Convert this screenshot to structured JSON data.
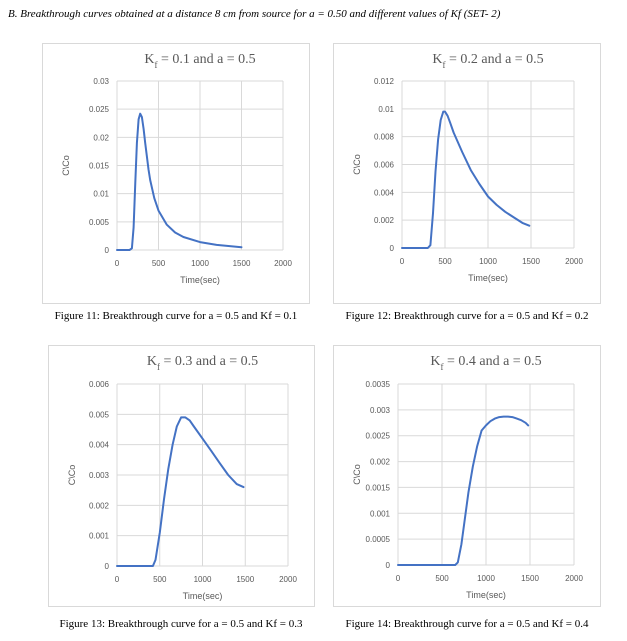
{
  "heading": "B.   Breakthrough curves obtained at a distance 8 cm from source for a = 0.50 and different values of Kf (SET- 2)",
  "chart_data": [
    {
      "type": "line",
      "title": "Kf = 0.1 and a = 0.5",
      "xlabel": "Time(sec)",
      "ylabel": "C\\Co",
      "xlim": [
        0,
        2000
      ],
      "ylim": [
        0,
        0.03
      ],
      "xticks": [
        "0",
        "500",
        "1000",
        "1500",
        "2000"
      ],
      "yticks": [
        "0",
        "0.005",
        "0.01",
        "0.015",
        "0.02",
        "0.025",
        "0.03"
      ],
      "grid": true,
      "series": [
        {
          "color": "#4472c4",
          "x": [
            0,
            150,
            180,
            200,
            220,
            240,
            260,
            280,
            300,
            320,
            340,
            360,
            380,
            400,
            450,
            500,
            600,
            700,
            800,
            1000,
            1200,
            1500
          ],
          "y": [
            0,
            0,
            0.0003,
            0.004,
            0.012,
            0.019,
            0.0232,
            0.0242,
            0.0236,
            0.0215,
            0.019,
            0.0166,
            0.0143,
            0.0124,
            0.0092,
            0.007,
            0.0045,
            0.0031,
            0.0023,
            0.0014,
            0.0009,
            0.0005
          ]
        }
      ],
      "caption": "Figure 11:   Breakthrough curve for a = 0.5 and Kf = 0.1"
    },
    {
      "type": "line",
      "title": "Kf = 0.2 and a = 0.5",
      "xlabel": "Time(sec)",
      "ylabel": "C\\Co",
      "xlim": [
        0,
        2000
      ],
      "ylim": [
        0,
        0.012
      ],
      "xticks": [
        "0",
        "500",
        "1000",
        "1500",
        "2000"
      ],
      "yticks": [
        "0",
        "0.002",
        "0.004",
        "0.006",
        "0.008",
        "0.01",
        "0.012"
      ],
      "grid": true,
      "series": [
        {
          "color": "#4472c4",
          "x": [
            0,
            300,
            330,
            360,
            390,
            420,
            450,
            480,
            500,
            530,
            560,
            600,
            700,
            800,
            900,
            1000,
            1100,
            1200,
            1300,
            1400,
            1480
          ],
          "y": [
            0,
            0,
            0.0002,
            0.0025,
            0.0055,
            0.0078,
            0.0092,
            0.0098,
            0.0098,
            0.0095,
            0.009,
            0.0083,
            0.0069,
            0.0056,
            0.0046,
            0.0037,
            0.0031,
            0.0026,
            0.0022,
            0.0018,
            0.0016
          ]
        }
      ],
      "caption": "Figure 12:   Breakthrough curve for a = 0.5 and Kf = 0.2"
    },
    {
      "type": "line",
      "title": "Kf = 0.3 and a = 0.5",
      "xlabel": "Time(sec)",
      "ylabel": "C\\Co",
      "xlim": [
        0,
        2000
      ],
      "ylim": [
        0,
        0.006
      ],
      "xticks": [
        "0",
        "500",
        "1000",
        "1500",
        "2000"
      ],
      "yticks": [
        "0",
        "0.001",
        "0.002",
        "0.003",
        "0.004",
        "0.005",
        "0.006"
      ],
      "grid": true,
      "series": [
        {
          "color": "#4472c4",
          "x": [
            0,
            420,
            450,
            500,
            550,
            600,
            650,
            700,
            750,
            800,
            850,
            900,
            1000,
            1100,
            1200,
            1300,
            1400,
            1480
          ],
          "y": [
            0,
            0,
            0.0002,
            0.0011,
            0.0022,
            0.0032,
            0.004,
            0.0046,
            0.0049,
            0.0049,
            0.0048,
            0.0046,
            0.0042,
            0.0038,
            0.0034,
            0.003,
            0.0027,
            0.0026
          ]
        }
      ],
      "caption": "Figure 13:   Breakthrough curve for a = 0.5 and Kf = 0.3"
    },
    {
      "type": "line",
      "title": "Kf = 0.4 and a = 0.5",
      "xlabel": "Time(sec)",
      "ylabel": "C\\Co",
      "xlim": [
        0,
        2000
      ],
      "ylim": [
        0,
        0.0035
      ],
      "xticks": [
        "0",
        "500",
        "1000",
        "1500",
        "2000"
      ],
      "yticks": [
        "0",
        "0.0005",
        "0.001",
        "0.0015",
        "0.002",
        "0.0025",
        "0.003",
        "0.0035"
      ],
      "grid": true,
      "series": [
        {
          "color": "#4472c4",
          "x": [
            0,
            650,
            680,
            720,
            760,
            800,
            850,
            900,
            950,
            1000,
            1050,
            1100,
            1150,
            1200,
            1250,
            1300,
            1350,
            1400,
            1450,
            1480
          ],
          "y": [
            0,
            0,
            5e-05,
            0.0004,
            0.0009,
            0.0014,
            0.0019,
            0.0023,
            0.0026,
            0.0027,
            0.00278,
            0.00283,
            0.00286,
            0.00287,
            0.00287,
            0.00286,
            0.00283,
            0.0028,
            0.00275,
            0.0027
          ]
        }
      ],
      "caption": "Figure 14:   Breakthrough curve for a = 0.5 and Kf = 0.4"
    }
  ]
}
